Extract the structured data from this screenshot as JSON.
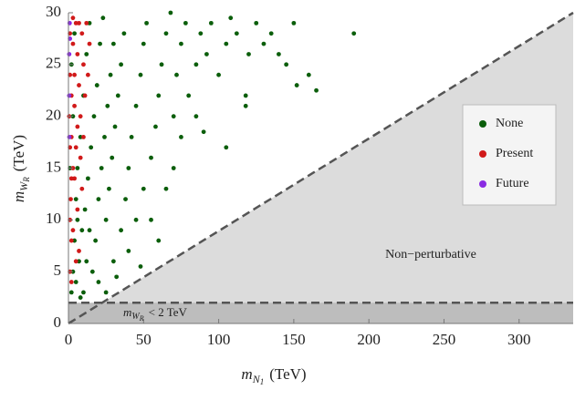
{
  "chart_data": {
    "type": "scatter",
    "xlabel": {
      "symbol": "m",
      "sub": "N",
      "subsub": "1",
      "unit": "(TeV)"
    },
    "ylabel": {
      "symbol": "m",
      "sub": "W",
      "subsub": "R",
      "unit": "(TeV)"
    },
    "xlim": [
      0,
      336
    ],
    "ylim": [
      0,
      30
    ],
    "xticks": [
      0,
      50,
      100,
      150,
      200,
      250,
      300
    ],
    "yticks": [
      0,
      5,
      10,
      15,
      20,
      25,
      30
    ],
    "regions": {
      "nonperturbative": {
        "label": "Non−perturbative",
        "line": [
          [
            0,
            0
          ],
          [
            336,
            30
          ]
        ],
        "color": "#dcdcdc"
      },
      "lower": {
        "label": {
          "symbol": "m",
          "sub": "W",
          "subsub": "R",
          "text": "< 2 TeV"
        },
        "bound": 2,
        "color": "#bdbdbd"
      }
    },
    "legend": "right",
    "series": [
      {
        "name": "None",
        "color": "#0b5e0b",
        "x": [
          2,
          3,
          4,
          5,
          6,
          8,
          10,
          12,
          14,
          5,
          7,
          9,
          11,
          13,
          15,
          17,
          19,
          21,
          23,
          16,
          18,
          20,
          22,
          24,
          26,
          28,
          30,
          10,
          12,
          14,
          25,
          27,
          29,
          31,
          33,
          35,
          37,
          8,
          20,
          30,
          35,
          38,
          40,
          42,
          45,
          48,
          50,
          52,
          3,
          2,
          4,
          6,
          1,
          25,
          32,
          40,
          45,
          50,
          55,
          58,
          60,
          62,
          65,
          68,
          70,
          72,
          75,
          78,
          80,
          85,
          88,
          92,
          95,
          100,
          105,
          108,
          112,
          118,
          120,
          125,
          130,
          135,
          140,
          145,
          150,
          152,
          160,
          165,
          118,
          105,
          190,
          55,
          65,
          70,
          60,
          48,
          75,
          85,
          90
        ],
        "y": [
          3,
          5,
          8,
          12,
          15,
          18,
          22,
          26,
          29,
          4,
          6,
          9,
          11,
          14,
          17,
          20,
          23,
          27,
          29.5,
          5,
          8,
          12,
          15,
          18,
          21,
          24,
          27,
          3,
          6,
          9,
          10,
          13,
          16,
          19,
          22,
          25,
          28,
          2.5,
          4,
          6,
          9,
          12,
          15,
          18,
          21,
          24,
          27,
          29,
          20,
          25,
          28,
          10,
          15,
          3,
          4.5,
          7,
          10,
          13,
          16,
          19,
          22,
          25,
          28,
          30,
          20,
          24,
          27,
          29,
          22,
          25,
          28,
          26,
          29,
          24,
          27,
          29.5,
          28,
          22,
          26,
          29,
          27,
          28,
          26,
          25,
          29,
          23,
          24,
          22.5,
          21,
          17,
          28,
          10,
          13,
          15,
          8,
          5.5,
          18,
          20,
          18.5
        ]
      },
      {
        "name": "Present",
        "color": "#d11a1a",
        "x": [
          1,
          2,
          1.5,
          3,
          2,
          4,
          1,
          3,
          5,
          6,
          7,
          8,
          5,
          4,
          6,
          3,
          7,
          2,
          1,
          9,
          10,
          8,
          12,
          11,
          6,
          4,
          2,
          1,
          9,
          5,
          14,
          3,
          2,
          7,
          13,
          0.5,
          1,
          10
        ],
        "y": [
          5,
          8,
          12,
          15,
          18,
          21,
          24,
          27,
          29,
          26,
          23,
          20,
          17,
          14,
          11,
          9,
          7,
          4,
          28,
          28,
          25,
          16,
          29,
          22,
          19,
          24,
          22,
          10,
          13,
          6,
          27,
          29.5,
          14,
          29,
          24,
          20,
          17,
          18
        ]
      },
      {
        "name": "Future",
        "color": "#8a2be2",
        "x": [
          0.5,
          0.8,
          0.5,
          1,
          0.6
        ],
        "y": [
          26,
          29,
          22,
          27.5,
          18
        ]
      }
    ]
  }
}
